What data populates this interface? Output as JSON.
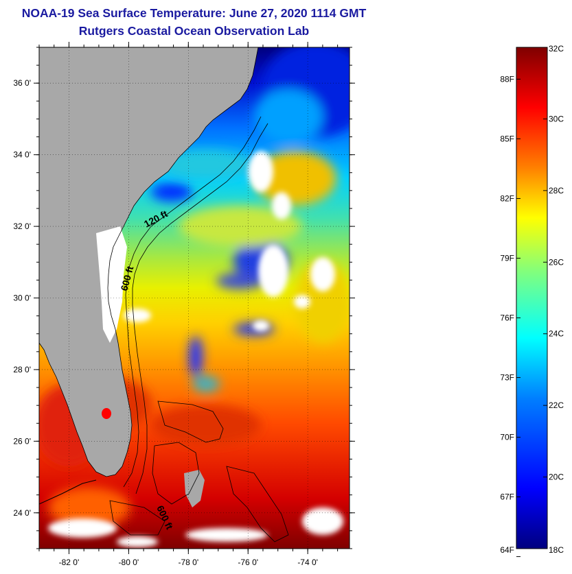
{
  "header": {
    "title": "NOAA-19 Sea Surface Temperature:  June 27, 2020 1114 GMT",
    "subtitle": "Rutgers Coastal Ocean Observation Lab"
  },
  "map": {
    "lon_range": [
      -83,
      -72.6
    ],
    "lat_range": [
      23,
      37
    ],
    "lat_ticks": [
      {
        "value": 36,
        "label": "36 0'"
      },
      {
        "value": 34,
        "label": "34 0'"
      },
      {
        "value": 32,
        "label": "32 0'"
      },
      {
        "value": 30,
        "label": "30 0'"
      },
      {
        "value": 28,
        "label": "28 0'"
      },
      {
        "value": 26,
        "label": "26 0'"
      },
      {
        "value": 24,
        "label": "24 0'"
      }
    ],
    "lon_ticks": [
      {
        "value": -82,
        "label": "-82 0'"
      },
      {
        "value": -80,
        "label": "-80 0'"
      },
      {
        "value": -78,
        "label": "-78 0'"
      },
      {
        "value": -76,
        "label": "-76 0'"
      },
      {
        "value": -74,
        "label": "-74 0'"
      }
    ],
    "contour_labels": [
      {
        "text": "120 ft"
      },
      {
        "text": "600 ft"
      },
      {
        "text": "600 ft"
      }
    ],
    "colors": {
      "land": "#a8a8a8",
      "cloud": "#ffffff",
      "coast": "#000000"
    }
  },
  "colorbar": {
    "range_c": [
      18,
      32
    ],
    "celsius_ticks": [
      {
        "value": 32,
        "label": "32C"
      },
      {
        "value": 30,
        "label": "30C"
      },
      {
        "value": 28,
        "label": "28C"
      },
      {
        "value": 26,
        "label": "26C"
      },
      {
        "value": 24,
        "label": "24C"
      },
      {
        "value": 22,
        "label": "22C"
      },
      {
        "value": 20,
        "label": "20C"
      },
      {
        "value": 18,
        "label": "18C"
      }
    ],
    "fahrenheit_ticks": [
      {
        "value": 88,
        "label": "88F"
      },
      {
        "value": 85,
        "label": "85F"
      },
      {
        "value": 82,
        "label": "82F"
      },
      {
        "value": 79,
        "label": "79F"
      },
      {
        "value": 76,
        "label": "76F"
      },
      {
        "value": 73,
        "label": "73F"
      },
      {
        "value": 70,
        "label": "70F"
      },
      {
        "value": 67,
        "label": "67F"
      },
      {
        "value": 64,
        "label": "64F"
      }
    ],
    "gradient": [
      "#00007f",
      "#0000ff",
      "#007fff",
      "#00ffff",
      "#7fff7f",
      "#ffff00",
      "#ff7f00",
      "#ff0000",
      "#7f0000"
    ]
  }
}
